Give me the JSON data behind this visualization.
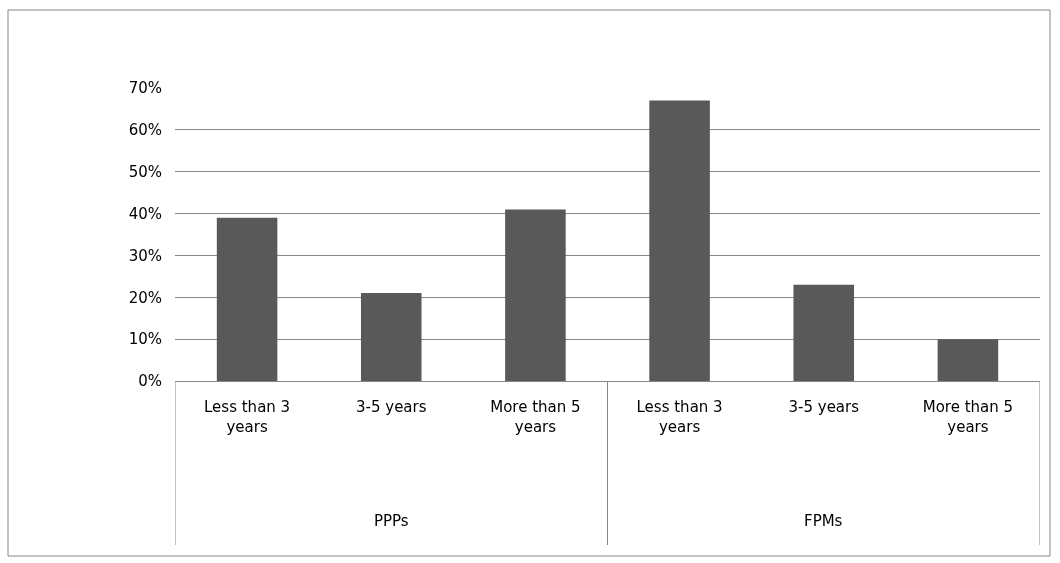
{
  "chart_data": {
    "type": "bar",
    "categories": [
      "Less than 3 years",
      "3-5 years",
      "More than 5 years",
      "Less than 3 years",
      "3-5 years",
      "More than 5 years"
    ],
    "values": [
      39,
      21,
      41,
      67,
      23,
      10
    ],
    "color": "#595959",
    "ylim": [
      0,
      70
    ],
    "yticks": [
      {
        "value": 0,
        "label": "0%"
      },
      {
        "value": 10,
        "label": "10%"
      },
      {
        "value": 20,
        "label": "20%"
      },
      {
        "value": 30,
        "label": "30%"
      },
      {
        "value": 40,
        "label": "40%"
      },
      {
        "value": 50,
        "label": "50%"
      },
      {
        "value": 60,
        "label": "60%"
      },
      {
        "value": 70,
        "label": "70%"
      }
    ],
    "grid": "y",
    "annotations": [
      "PPPs",
      "FPMs"
    ]
  }
}
